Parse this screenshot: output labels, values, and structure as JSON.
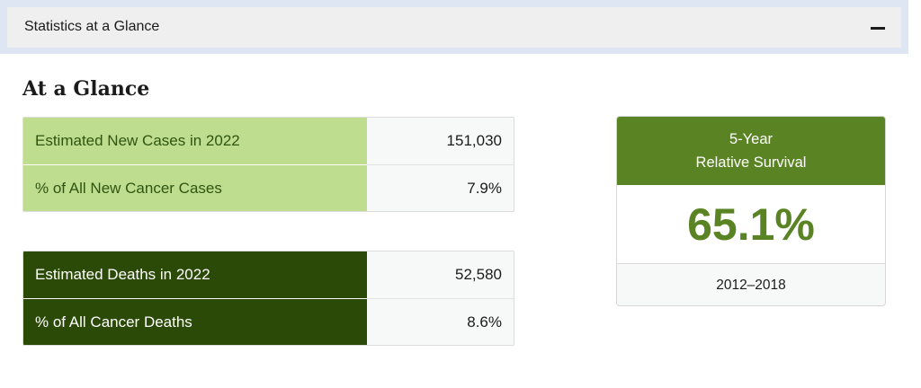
{
  "accordion": {
    "title": "Statistics at a Glance",
    "collapse_symbol": "minus-icon"
  },
  "heading": "At a Glance",
  "new_cases_table": {
    "rows": [
      {
        "label": "Estimated New Cases in 2022",
        "value": "151,030"
      },
      {
        "label": "% of All New Cancer Cases",
        "value": "7.9%"
      }
    ]
  },
  "deaths_table": {
    "rows": [
      {
        "label": "Estimated Deaths in 2022",
        "value": "52,580"
      },
      {
        "label": "% of All Cancer Deaths",
        "value": "8.6%"
      }
    ]
  },
  "survival": {
    "header_line1": "5-Year",
    "header_line2": "Relative Survival",
    "value": "65.1%",
    "period": "2012–2018"
  },
  "colors": {
    "light_green": "#bedd8f",
    "dark_green": "#2b4a07",
    "accent_green": "#5a8323",
    "accordion_border": "#dde6f2"
  }
}
